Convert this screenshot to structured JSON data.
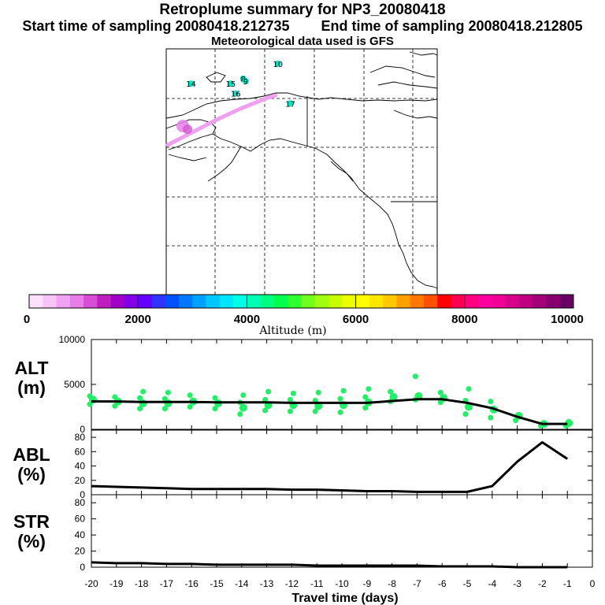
{
  "header": {
    "title": "Retroplume summary for NP3_20080418",
    "start": "Start time of sampling 20080418.212735",
    "end": "End time of sampling 20080418.212805",
    "met": "Meteorological data used is GFS"
  },
  "map": {
    "labels": [
      {
        "text": "14",
        "lon": -170,
        "lat": 73
      },
      {
        "text": "15",
        "lon": -154,
        "lat": 73
      },
      {
        "text": "8",
        "lon": -149,
        "lat": 74
      },
      {
        "text": "9",
        "lon": -148,
        "lat": 73.5
      },
      {
        "text": "16",
        "lon": -152,
        "lat": 71
      },
      {
        "text": "10",
        "lon": -135,
        "lat": 77
      },
      {
        "text": "17",
        "lon": -130,
        "lat": 69
      }
    ]
  },
  "colorbar": {
    "title": "Altitude (m)",
    "tick_labels": [
      "0",
      "2000",
      "4000",
      "6000",
      "8000",
      "10000"
    ],
    "colors": [
      "#fde0fd",
      "#f8c4f8",
      "#f2a2f2",
      "#e97de9",
      "#d64ed6",
      "#be1ebe",
      "#a000c8",
      "#8200e6",
      "#6400ff",
      "#3232ff",
      "#0050ff",
      "#0078ff",
      "#00a0ff",
      "#00c8ff",
      "#00e6ff",
      "#00ffe6",
      "#00ffb4",
      "#00ff80",
      "#00ff4c",
      "#2eff2e",
      "#70ff1c",
      "#a0ff10",
      "#c8ff00",
      "#ecff00",
      "#ffff00",
      "#ffe600",
      "#ffc800",
      "#ffa000",
      "#ff7800",
      "#ff5000",
      "#ff0000",
      "#ff0050",
      "#ff0080",
      "#ff00a0",
      "#f00096",
      "#d8008a",
      "#be0080",
      "#a40078",
      "#880070",
      "#6a0066"
    ]
  },
  "chart_data": [
    {
      "type": "line",
      "name": "ALT",
      "ylabel": "ALT\n(m)",
      "ylabel_line1": "ALT",
      "ylabel_line2": "(m)",
      "ylim": [
        0,
        10000
      ],
      "yticks": [
        "10000",
        "5000",
        "0"
      ],
      "x": [
        -20,
        -19,
        -18,
        -17,
        -16,
        -15,
        -14,
        -13,
        -12,
        -11,
        -10,
        -9,
        -8,
        -7,
        -6,
        -5,
        -4,
        -3,
        -2,
        -1
      ],
      "values": [
        3100,
        3100,
        3050,
        3050,
        3050,
        3000,
        3000,
        3000,
        2950,
        2950,
        2950,
        2950,
        3150,
        3350,
        3350,
        2950,
        2350,
        1400,
        600,
        600
      ],
      "scatter": [
        {
          "x": -20,
          "ys": [
            2800,
            3300,
            3700
          ]
        },
        {
          "x": -19,
          "ys": [
            2600,
            3100,
            3600
          ]
        },
        {
          "x": -18,
          "ys": [
            2300,
            2900,
            3500,
            4200
          ]
        },
        {
          "x": -17,
          "ys": [
            2300,
            2900,
            3400,
            4100
          ]
        },
        {
          "x": -16,
          "ys": [
            2500,
            3100,
            3800
          ]
        },
        {
          "x": -15,
          "ys": [
            2300,
            2900,
            3500
          ]
        },
        {
          "x": -14,
          "ys": [
            1700,
            2400,
            3000,
            3800
          ]
        },
        {
          "x": -13,
          "ys": [
            2100,
            2700,
            3300,
            4200
          ]
        },
        {
          "x": -12,
          "ys": [
            2000,
            2700,
            3300,
            4000
          ]
        },
        {
          "x": -11,
          "ys": [
            2000,
            2600,
            3200,
            4100
          ]
        },
        {
          "x": -10,
          "ys": [
            1900,
            2700,
            3400,
            4300
          ]
        },
        {
          "x": -9,
          "ys": [
            2400,
            3000,
            3600,
            4500
          ]
        },
        {
          "x": -8,
          "ys": [
            3100,
            3600,
            4200
          ]
        },
        {
          "x": -7,
          "ys": [
            3300,
            3700,
            5900
          ]
        },
        {
          "x": -6,
          "ys": [
            3000,
            3500,
            4100
          ]
        },
        {
          "x": -5,
          "ys": [
            1700,
            2500,
            3200,
            4500
          ]
        },
        {
          "x": -4,
          "ys": [
            1300,
            2200,
            3100
          ]
        },
        {
          "x": -3,
          "ys": [
            1000,
            1500
          ]
        },
        {
          "x": -2,
          "ys": [
            400,
            600
          ]
        },
        {
          "x": -1,
          "ys": [
            400,
            700
          ]
        }
      ]
    },
    {
      "type": "line",
      "name": "ABL",
      "ylabel_line1": "ABL",
      "ylabel_line2": "(%)",
      "ylim": [
        0,
        90
      ],
      "yticks": [
        "80",
        "60",
        "40",
        "20",
        "0"
      ],
      "x": [
        -20,
        -19,
        -18,
        -17,
        -16,
        -15,
        -14,
        -13,
        -12,
        -11,
        -10,
        -9,
        -8,
        -7,
        -6,
        -5,
        -4,
        -3,
        -2,
        -1
      ],
      "values": [
        12,
        11,
        10,
        9,
        8,
        8,
        8,
        8,
        7,
        7,
        6,
        5,
        5,
        4,
        4,
        4,
        12,
        46,
        73,
        50
      ]
    },
    {
      "type": "line",
      "name": "STR",
      "ylabel_line1": "STR",
      "ylabel_line2": "(%)",
      "ylim": [
        0,
        90
      ],
      "yticks": [
        "80",
        "60",
        "40",
        "20",
        "0"
      ],
      "x": [
        -20,
        -19,
        -18,
        -17,
        -16,
        -15,
        -14,
        -13,
        -12,
        -11,
        -10,
        -9,
        -8,
        -7,
        -6,
        -5,
        -4,
        -3,
        -2,
        -1
      ],
      "values": [
        6,
        5,
        5,
        4,
        4,
        3,
        3,
        3,
        3,
        2,
        2,
        2,
        2,
        2,
        1,
        1,
        1,
        0,
        0,
        0
      ]
    }
  ],
  "xaxis": {
    "label": "Travel time (days)",
    "xlim": [
      -20,
      0
    ],
    "ticks": [
      "-20",
      "-19",
      "-18",
      "-17",
      "-16",
      "-15",
      "-14",
      "-13",
      "-12",
      "-11",
      "-10",
      "-9",
      "-8",
      "-7",
      "-6",
      "-5",
      "-4",
      "-3",
      "-2",
      "-1",
      "0"
    ]
  }
}
